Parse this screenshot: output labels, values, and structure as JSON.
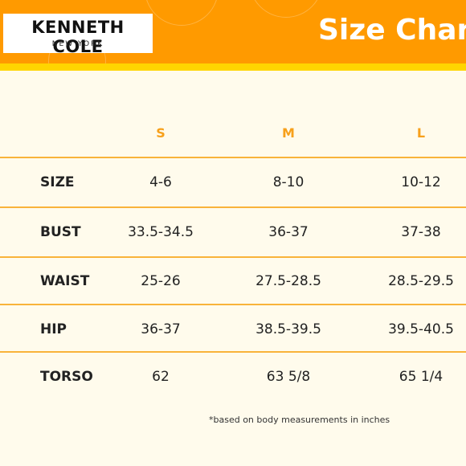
{
  "brand": {
    "name": "KENNETH COLE",
    "city": "NEW YORK"
  },
  "title": "Size Char",
  "colors": {
    "header": "#ff9a00",
    "stripe": "#ffd500",
    "table_background": "#fffbec",
    "accent_text": "#f7a01b",
    "rule": "#f9b33a"
  },
  "columns": [
    "S",
    "M",
    "L"
  ],
  "rows": [
    {
      "label": "SIZE",
      "values": [
        "4-6",
        "8-10",
        "10-12"
      ]
    },
    {
      "label": "BUST",
      "values": [
        "33.5-34.5",
        "36-37",
        "37-38"
      ]
    },
    {
      "label": "WAIST",
      "values": [
        "25-26",
        "27.5-28.5",
        "28.5-29.5"
      ]
    },
    {
      "label": "HIP",
      "values": [
        "36-37",
        "38.5-39.5",
        "39.5-40.5"
      ]
    },
    {
      "label": "TORSO",
      "values": [
        "62",
        "63 5/8",
        "65 1/4"
      ]
    }
  ],
  "note": "*based on body measurements in inches"
}
